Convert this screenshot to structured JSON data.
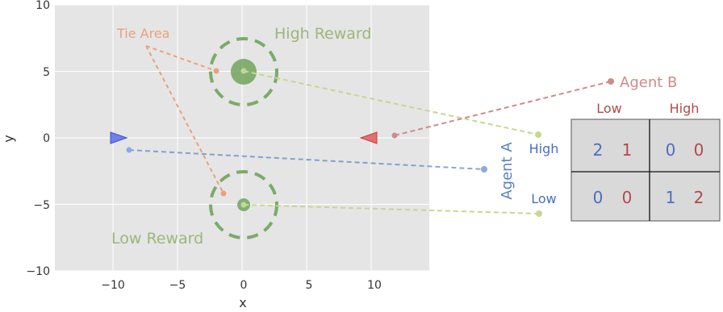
{
  "plot": {
    "x_label": "x",
    "y_label": "y",
    "x_range": [
      -14.5,
      14.5
    ],
    "y_range": [
      -10,
      10
    ],
    "x_ticks": [
      "−10",
      "−5",
      "0",
      "5",
      "10"
    ],
    "y_ticks": [
      "10",
      "5",
      "0",
      "−5",
      "−10"
    ],
    "x_tick_values": [
      -10,
      -5,
      0,
      5,
      10
    ],
    "y_tick_values": [
      10,
      5,
      0,
      -5,
      -10
    ],
    "grid": true,
    "background": "#e5e5e5"
  },
  "labels": {
    "tie_area": "Tie Area",
    "high_reward": "High Reward",
    "low_reward": "Low Reward",
    "agent_a": "Agent A",
    "agent_b": "Agent B"
  },
  "colors": {
    "tie": "#e8a27c",
    "reward": "#7caa6a",
    "agent_a": "#5b80c8",
    "agent_b": "#c35a5a",
    "agent_b_label": "#d08a8a",
    "action_link": "#c5d890",
    "table_bg": "#d9d9d9"
  },
  "matrix": {
    "col_headers": [
      "Low",
      "High"
    ],
    "row_headers": [
      "High",
      "Low"
    ],
    "cells": [
      [
        {
          "a": "2",
          "b": "1"
        },
        {
          "a": "0",
          "b": "0"
        }
      ],
      [
        {
          "a": "0",
          "b": "0"
        },
        {
          "a": "1",
          "b": "2"
        }
      ]
    ]
  }
}
